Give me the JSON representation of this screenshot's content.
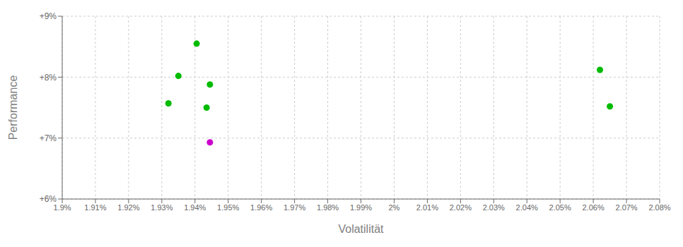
{
  "chart_data": {
    "type": "scatter",
    "xlabel": "Volatilität",
    "ylabel": "Performance",
    "x": [
      1.9405,
      1.935,
      1.9445,
      1.932,
      1.9435,
      1.9445,
      2.062,
      2.065
    ],
    "values": [
      8.55,
      8.02,
      7.88,
      7.57,
      7.5,
      6.93,
      8.12,
      7.52
    ],
    "colors": [
      "#00bb00",
      "#00bb00",
      "#00bb00",
      "#00bb00",
      "#00bb00",
      "#cc00cc",
      "#00bb00",
      "#00bb00"
    ],
    "xlim": [
      1.9,
      2.08
    ],
    "ylim": [
      6.0,
      9.0
    ],
    "xticks": [
      {
        "value": 1.9,
        "label": "1.9%"
      },
      {
        "value": 1.91,
        "label": "1.91%"
      },
      {
        "value": 1.92,
        "label": "1.92%"
      },
      {
        "value": 1.93,
        "label": "1.93%"
      },
      {
        "value": 1.94,
        "label": "1.94%"
      },
      {
        "value": 1.95,
        "label": "1.95%"
      },
      {
        "value": 1.96,
        "label": "1.96%"
      },
      {
        "value": 1.97,
        "label": "1.97%"
      },
      {
        "value": 1.98,
        "label": "1.98%"
      },
      {
        "value": 1.99,
        "label": "1.99%"
      },
      {
        "value": 2.0,
        "label": "2%"
      },
      {
        "value": 2.01,
        "label": "2.01%"
      },
      {
        "value": 2.02,
        "label": "2.02%"
      },
      {
        "value": 2.03,
        "label": "2.03%"
      },
      {
        "value": 2.04,
        "label": "2.04%"
      },
      {
        "value": 2.05,
        "label": "2.05%"
      },
      {
        "value": 2.06,
        "label": "2.06%"
      },
      {
        "value": 2.07,
        "label": "2.07%"
      },
      {
        "value": 2.08,
        "label": "2.08%"
      }
    ],
    "yticks": [
      {
        "value": 6.0,
        "label": "+6%"
      },
      {
        "value": 7.0,
        "label": "+7%"
      },
      {
        "value": 8.0,
        "label": "+8%"
      },
      {
        "value": 9.0,
        "label": "+9%"
      }
    ],
    "grid": true
  }
}
